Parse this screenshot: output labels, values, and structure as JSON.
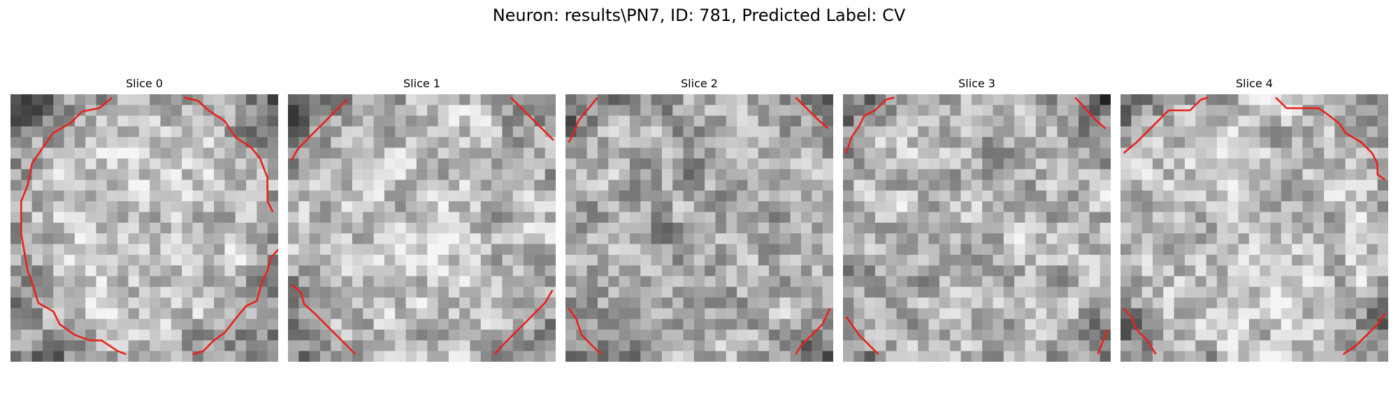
{
  "figure": {
    "title": "Neuron: results\\PN7, ID: 781, Predicted Label: CV"
  },
  "colors": {
    "background": "#ffffff",
    "contour": "#e8221b",
    "image_colormap": "gray"
  },
  "slices": [
    {
      "title": "Slice 0"
    },
    {
      "title": "Slice 1"
    },
    {
      "title": "Slice 2"
    },
    {
      "title": "Slice 3"
    },
    {
      "title": "Slice 4"
    }
  ]
}
